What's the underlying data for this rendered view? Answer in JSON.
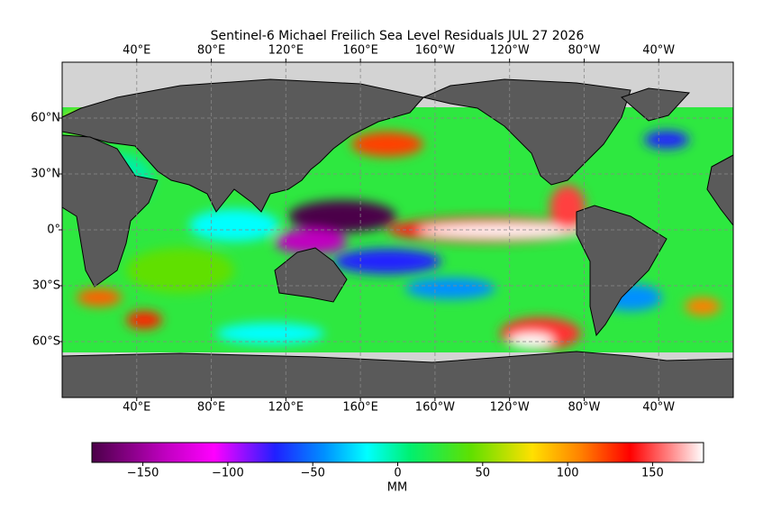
{
  "title": "Sentinel-6 Michael Freilich Sea Level Residuals JUL 27 2026",
  "map": {
    "lon_ticks": [
      {
        "value": 40,
        "label": "40°E"
      },
      {
        "value": 80,
        "label": "80°E"
      },
      {
        "value": 120,
        "label": "120°E"
      },
      {
        "value": 160,
        "label": "160°E"
      },
      {
        "value": -160,
        "label": "160°W"
      },
      {
        "value": -120,
        "label": "120°W"
      },
      {
        "value": -80,
        "label": "80°W"
      },
      {
        "value": -40,
        "label": "40°W"
      }
    ],
    "lat_ticks": [
      {
        "value": 60,
        "label": "60°N"
      },
      {
        "value": 30,
        "label": "30°N"
      },
      {
        "value": 0,
        "label": "0°"
      },
      {
        "value": -30,
        "label": "30°S"
      },
      {
        "value": -60,
        "label": "60°S"
      }
    ]
  },
  "colorbar": {
    "label": "MM",
    "lim": [
      -180,
      180
    ],
    "ticks": [
      {
        "value": -150,
        "label": "−150"
      },
      {
        "value": -100,
        "label": "−100"
      },
      {
        "value": -50,
        "label": "−50"
      },
      0,
      50,
      100,
      150
    ]
  }
}
